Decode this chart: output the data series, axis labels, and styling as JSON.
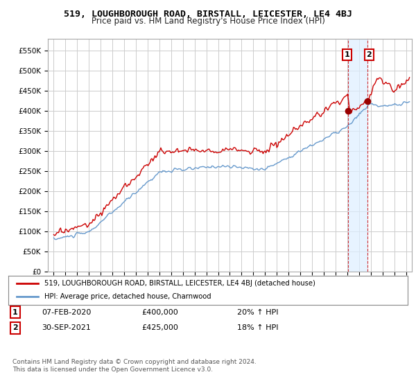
{
  "title": "519, LOUGHBOROUGH ROAD, BIRSTALL, LEICESTER, LE4 4BJ",
  "subtitle": "Price paid vs. HM Land Registry's House Price Index (HPI)",
  "ylim": [
    0,
    580000
  ],
  "yticks": [
    0,
    50000,
    100000,
    150000,
    200000,
    250000,
    300000,
    350000,
    400000,
    450000,
    500000,
    550000
  ],
  "ytick_labels": [
    "£0",
    "£50K",
    "£100K",
    "£150K",
    "£200K",
    "£250K",
    "£300K",
    "£350K",
    "£400K",
    "£450K",
    "£500K",
    "£550K"
  ],
  "sale1_date": "07-FEB-2020",
  "sale1_price": 400000,
  "sale1_hpi_pct": "20%",
  "sale2_date": "30-SEP-2021",
  "sale2_price": 425000,
  "sale2_hpi_pct": "18%",
  "sale1_year": 2020.08,
  "sale2_year": 2021.75,
  "legend_line1": "519, LOUGHBOROUGH ROAD, BIRSTALL, LEICESTER, LE4 4BJ (detached house)",
  "legend_line2": "HPI: Average price, detached house, Charnwood",
  "footer": "Contains HM Land Registry data © Crown copyright and database right 2024.\nThis data is licensed under the Open Government Licence v3.0.",
  "line_color_red": "#cc0000",
  "line_color_blue": "#6699cc",
  "marker_color_red": "#990000",
  "sale_box_color": "#cc0000",
  "shade_color": "#ddeeff",
  "grid_color": "#cccccc",
  "bg_color": "#ffffff"
}
